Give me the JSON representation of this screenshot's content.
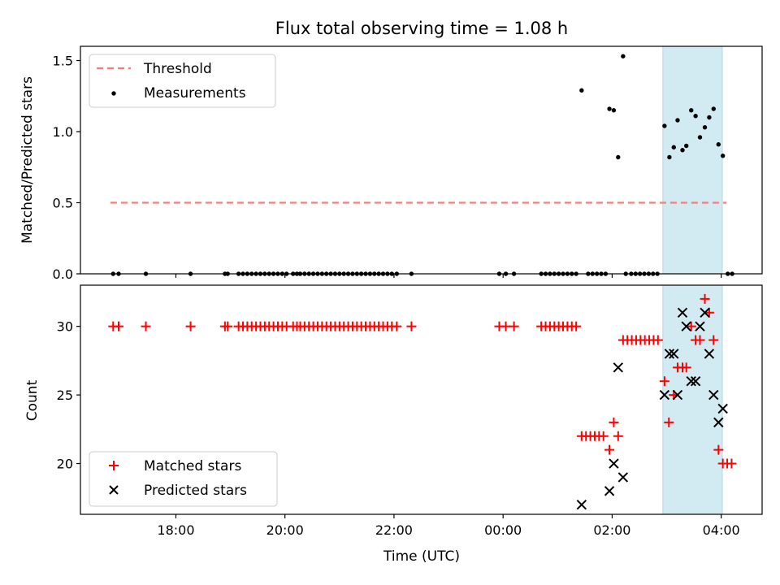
{
  "chart_data": {
    "title": "Flux total observing time = 1.08 h",
    "xlabel": "Time (UTC)",
    "x_ticks": [
      "18:00",
      "20:00",
      "22:00",
      "00:00",
      "02:00",
      "04:00"
    ],
    "x_ticks_hours": [
      18,
      20,
      22,
      24,
      26,
      28
    ],
    "xlim_hours": [
      16.25,
      28.75
    ],
    "shaded_span_hours": [
      26.93,
      28.02
    ],
    "shade_color": "#add8e6",
    "panels": [
      {
        "type": "scatter",
        "ylabel": "Matched/Predicted stars",
        "ylim": [
          0,
          1.6
        ],
        "y_ticks": [
          "0.0",
          "0.5",
          "1.0",
          "1.5"
        ],
        "y_tick_values": [
          0,
          0.5,
          1.0,
          1.5
        ],
        "legend_position": "upper-left",
        "threshold": {
          "name": "Threshold",
          "y": 0.5,
          "x_range": [
            16.8,
            28.1
          ],
          "color": "#f08080",
          "style": "dashed"
        },
        "series": [
          {
            "name": "Measurements",
            "color": "#000000",
            "points": [
              [
                16.85,
                0
              ],
              [
                16.95,
                0
              ],
              [
                17.45,
                0
              ],
              [
                18.27,
                0
              ],
              [
                18.9,
                0
              ],
              [
                18.95,
                0
              ],
              [
                19.15,
                0
              ],
              [
                19.23,
                0
              ],
              [
                19.31,
                0
              ],
              [
                19.39,
                0
              ],
              [
                19.47,
                0
              ],
              [
                19.55,
                0
              ],
              [
                19.63,
                0
              ],
              [
                19.71,
                0
              ],
              [
                19.79,
                0
              ],
              [
                19.87,
                0
              ],
              [
                19.95,
                0
              ],
              [
                20.03,
                0
              ],
              [
                20.15,
                0
              ],
              [
                20.22,
                0
              ],
              [
                20.28,
                0
              ],
              [
                20.36,
                0
              ],
              [
                20.44,
                0
              ],
              [
                20.52,
                0
              ],
              [
                20.6,
                0
              ],
              [
                20.68,
                0
              ],
              [
                20.76,
                0
              ],
              [
                20.84,
                0
              ],
              [
                20.92,
                0
              ],
              [
                21.0,
                0
              ],
              [
                21.08,
                0
              ],
              [
                21.16,
                0
              ],
              [
                21.24,
                0
              ],
              [
                21.32,
                0
              ],
              [
                21.4,
                0
              ],
              [
                21.48,
                0
              ],
              [
                21.56,
                0
              ],
              [
                21.64,
                0
              ],
              [
                21.72,
                0
              ],
              [
                21.8,
                0
              ],
              [
                21.88,
                0
              ],
              [
                21.96,
                0
              ],
              [
                22.05,
                0
              ],
              [
                22.32,
                0
              ],
              [
                23.93,
                0
              ],
              [
                24.05,
                0
              ],
              [
                24.2,
                0
              ],
              [
                24.7,
                0
              ],
              [
                24.78,
                0
              ],
              [
                24.86,
                0
              ],
              [
                24.94,
                0
              ],
              [
                25.02,
                0
              ],
              [
                25.1,
                0
              ],
              [
                25.18,
                0
              ],
              [
                25.26,
                0
              ],
              [
                25.34,
                0
              ],
              [
                25.44,
                1.29
              ],
              [
                25.56,
                0
              ],
              [
                25.64,
                0
              ],
              [
                25.72,
                0
              ],
              [
                25.8,
                0
              ],
              [
                25.88,
                0
              ],
              [
                25.95,
                1.16
              ],
              [
                26.03,
                1.15
              ],
              [
                26.11,
                0.82
              ],
              [
                26.2,
                1.53
              ],
              [
                26.25,
                0
              ],
              [
                26.35,
                0
              ],
              [
                26.43,
                0
              ],
              [
                26.51,
                0
              ],
              [
                26.59,
                0
              ],
              [
                26.67,
                0
              ],
              [
                26.75,
                0
              ],
              [
                26.83,
                0
              ],
              [
                26.96,
                1.04
              ],
              [
                27.05,
                0.82
              ],
              [
                27.13,
                0.89
              ],
              [
                27.2,
                1.08
              ],
              [
                27.29,
                0.87
              ],
              [
                27.36,
                0.9
              ],
              [
                27.45,
                1.15
              ],
              [
                27.53,
                1.11
              ],
              [
                27.61,
                0.96
              ],
              [
                27.7,
                1.03
              ],
              [
                27.78,
                1.1
              ],
              [
                27.86,
                1.16
              ],
              [
                27.95,
                0.91
              ],
              [
                28.03,
                0.83
              ],
              [
                28.12,
                0
              ],
              [
                28.2,
                0
              ]
            ]
          }
        ]
      },
      {
        "type": "scatter",
        "ylabel": "Count",
        "ylim": [
          16.3,
          33.0
        ],
        "y_ticks": [
          "20",
          "25",
          "30"
        ],
        "y_tick_values": [
          20,
          25,
          30
        ],
        "legend_position": "lower-left",
        "series": [
          {
            "name": "Matched stars",
            "marker": "plus",
            "color": "#ff0000",
            "points": [
              [
                16.85,
                30
              ],
              [
                16.95,
                30
              ],
              [
                17.45,
                30
              ],
              [
                18.27,
                30
              ],
              [
                18.9,
                30
              ],
              [
                18.95,
                30
              ],
              [
                19.15,
                30
              ],
              [
                19.23,
                30
              ],
              [
                19.31,
                30
              ],
              [
                19.39,
                30
              ],
              [
                19.47,
                30
              ],
              [
                19.55,
                30
              ],
              [
                19.63,
                30
              ],
              [
                19.71,
                30
              ],
              [
                19.79,
                30
              ],
              [
                19.87,
                30
              ],
              [
                19.95,
                30
              ],
              [
                20.03,
                30
              ],
              [
                20.15,
                30
              ],
              [
                20.22,
                30
              ],
              [
                20.28,
                30
              ],
              [
                20.36,
                30
              ],
              [
                20.44,
                30
              ],
              [
                20.52,
                30
              ],
              [
                20.6,
                30
              ],
              [
                20.68,
                30
              ],
              [
                20.76,
                30
              ],
              [
                20.84,
                30
              ],
              [
                20.92,
                30
              ],
              [
                21.0,
                30
              ],
              [
                21.08,
                30
              ],
              [
                21.16,
                30
              ],
              [
                21.24,
                30
              ],
              [
                21.32,
                30
              ],
              [
                21.4,
                30
              ],
              [
                21.48,
                30
              ],
              [
                21.56,
                30
              ],
              [
                21.64,
                30
              ],
              [
                21.72,
                30
              ],
              [
                21.8,
                30
              ],
              [
                21.88,
                30
              ],
              [
                21.96,
                30
              ],
              [
                22.05,
                30
              ],
              [
                22.32,
                30
              ],
              [
                23.93,
                30
              ],
              [
                24.05,
                30
              ],
              [
                24.2,
                30
              ],
              [
                24.7,
                30
              ],
              [
                24.78,
                30
              ],
              [
                24.86,
                30
              ],
              [
                24.94,
                30
              ],
              [
                25.02,
                30
              ],
              [
                25.1,
                30
              ],
              [
                25.18,
                30
              ],
              [
                25.26,
                30
              ],
              [
                25.34,
                30
              ],
              [
                25.44,
                22
              ],
              [
                25.52,
                22
              ],
              [
                25.6,
                22
              ],
              [
                25.68,
                22
              ],
              [
                25.76,
                22
              ],
              [
                25.84,
                22
              ],
              [
                25.95,
                21
              ],
              [
                26.03,
                23
              ],
              [
                26.11,
                22
              ],
              [
                26.2,
                29
              ],
              [
                26.28,
                29
              ],
              [
                26.36,
                29
              ],
              [
                26.44,
                29
              ],
              [
                26.52,
                29
              ],
              [
                26.6,
                29
              ],
              [
                26.68,
                29
              ],
              [
                26.76,
                29
              ],
              [
                26.84,
                29
              ],
              [
                26.96,
                26
              ],
              [
                27.04,
                23
              ],
              [
                27.13,
                25
              ],
              [
                27.2,
                27
              ],
              [
                27.29,
                27
              ],
              [
                27.36,
                27
              ],
              [
                27.45,
                30
              ],
              [
                27.53,
                29
              ],
              [
                27.61,
                29
              ],
              [
                27.7,
                32
              ],
              [
                27.78,
                31
              ],
              [
                27.86,
                29
              ],
              [
                27.95,
                21
              ],
              [
                28.03,
                20
              ],
              [
                28.11,
                20
              ],
              [
                28.19,
                20
              ]
            ]
          },
          {
            "name": "Predicted stars",
            "marker": "x",
            "color": "#000000",
            "points": [
              [
                25.44,
                17
              ],
              [
                25.95,
                18
              ],
              [
                26.03,
                20
              ],
              [
                26.11,
                27
              ],
              [
                26.2,
                19
              ],
              [
                26.96,
                25
              ],
              [
                27.05,
                28
              ],
              [
                27.13,
                28
              ],
              [
                27.2,
                25
              ],
              [
                27.29,
                31
              ],
              [
                27.36,
                30
              ],
              [
                27.45,
                26
              ],
              [
                27.53,
                26
              ],
              [
                27.61,
                30
              ],
              [
                27.7,
                31
              ],
              [
                27.78,
                28
              ],
              [
                27.86,
                25
              ],
              [
                27.95,
                23
              ],
              [
                28.03,
                24
              ]
            ]
          }
        ]
      }
    ]
  }
}
